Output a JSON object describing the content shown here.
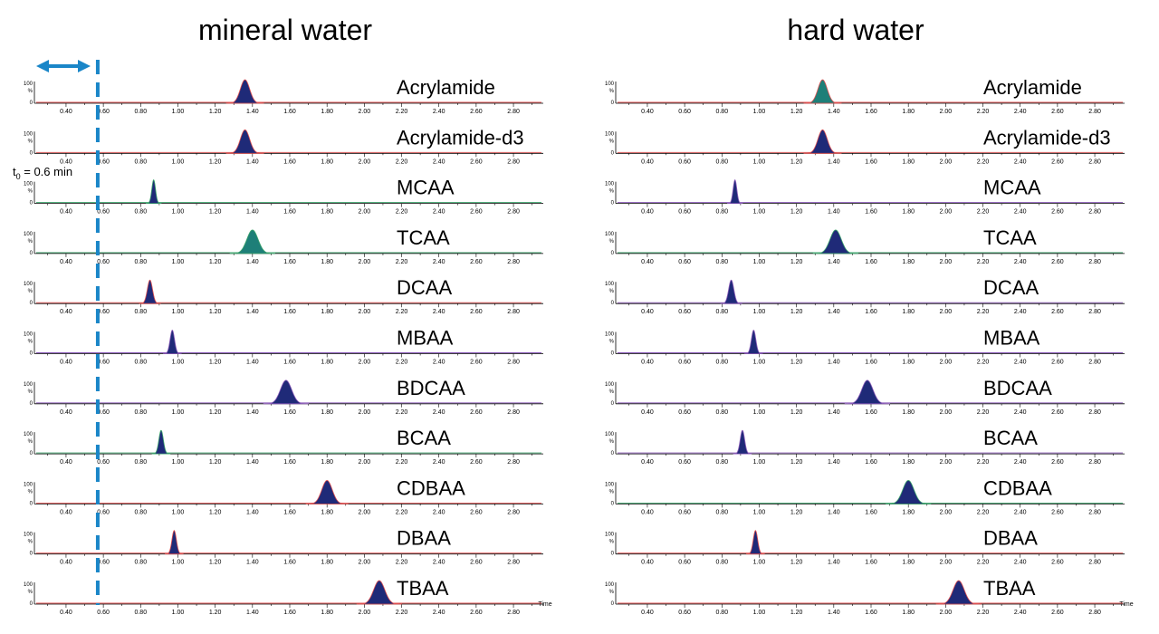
{
  "chart_data": {
    "type": "line",
    "x_tick_labels": [
      "0.40",
      "0.60",
      "0.80",
      "1.00",
      "1.20",
      "1.40",
      "1.60",
      "1.80",
      "2.00",
      "2.20",
      "2.40",
      "2.60",
      "2.80"
    ],
    "xlim": [
      0.24,
      2.96
    ],
    "y_tick_labels": [
      "100",
      "%",
      "0"
    ],
    "x_unit_label": "Time",
    "annotation": {
      "text": "t",
      "subscript": "0",
      "suffix": " = 0.6 min",
      "t0": 0.57
    },
    "colors": {
      "peak_fill": "#1f2a78",
      "peak_fill_alt": "#1e7f78",
      "trace_red": "#e05050",
      "trace_green": "#3aa36a",
      "trace_purple": "#8a5ab8",
      "marker_blue": "#1a86c8"
    },
    "panels": [
      {
        "title": "mineral water",
        "traces": [
          {
            "name": "Acrylamide",
            "rt": 1.36,
            "width": 0.025,
            "fill": "#1f2a78",
            "base": "#e05050"
          },
          {
            "name": "Acrylamide-d3",
            "rt": 1.36,
            "width": 0.025,
            "fill": "#1f2a78",
            "base": "#e05050"
          },
          {
            "name": "MCAA",
            "rt": 0.87,
            "width": 0.01,
            "fill": "#1f2a78",
            "base": "#3aa36a"
          },
          {
            "name": "TCAA",
            "rt": 1.4,
            "width": 0.03,
            "fill": "#1e7f78",
            "base": "#3aa36a"
          },
          {
            "name": "DCAA",
            "rt": 0.85,
            "width": 0.014,
            "fill": "#1f2a78",
            "base": "#e05050"
          },
          {
            "name": "MBAA",
            "rt": 0.97,
            "width": 0.012,
            "fill": "#1f2a78",
            "base": "#8a5ab8"
          },
          {
            "name": "BDCAA",
            "rt": 1.58,
            "width": 0.03,
            "fill": "#1f2a78",
            "base": "#8a5ab8"
          },
          {
            "name": "BCAA",
            "rt": 0.91,
            "width": 0.012,
            "fill": "#1f2a78",
            "base": "#3aa36a"
          },
          {
            "name": "CDBAA",
            "rt": 1.8,
            "width": 0.028,
            "fill": "#1f2a78",
            "base": "#e05050"
          },
          {
            "name": "DBAA",
            "rt": 0.98,
            "width": 0.012,
            "fill": "#1f2a78",
            "base": "#e05050"
          },
          {
            "name": "TBAA",
            "rt": 2.08,
            "width": 0.03,
            "fill": "#1f2a78",
            "base": "#e05050"
          }
        ]
      },
      {
        "title": "hard water",
        "traces": [
          {
            "name": "Acrylamide",
            "rt": 1.34,
            "width": 0.025,
            "fill": "#1e7f78",
            "base": "#e05050"
          },
          {
            "name": "Acrylamide-d3",
            "rt": 1.34,
            "width": 0.025,
            "fill": "#1f2a78",
            "base": "#e05050"
          },
          {
            "name": "MCAA",
            "rt": 0.87,
            "width": 0.01,
            "fill": "#1f2a78",
            "base": "#8a5ab8"
          },
          {
            "name": "TCAA",
            "rt": 1.41,
            "width": 0.03,
            "fill": "#1f2a78",
            "base": "#3aa36a"
          },
          {
            "name": "DCAA",
            "rt": 0.85,
            "width": 0.014,
            "fill": "#1f2a78",
            "base": "#8a5ab8"
          },
          {
            "name": "MBAA",
            "rt": 0.97,
            "width": 0.012,
            "fill": "#1f2a78",
            "base": "#8a5ab8"
          },
          {
            "name": "BDCAA",
            "rt": 1.58,
            "width": 0.03,
            "fill": "#1f2a78",
            "base": "#8a5ab8"
          },
          {
            "name": "BCAA",
            "rt": 0.91,
            "width": 0.012,
            "fill": "#1f2a78",
            "base": "#8a5ab8"
          },
          {
            "name": "CDBAA",
            "rt": 1.8,
            "width": 0.03,
            "fill": "#1f2a78",
            "base": "#3aa36a"
          },
          {
            "name": "DBAA",
            "rt": 0.98,
            "width": 0.012,
            "fill": "#1f2a78",
            "base": "#e05050"
          },
          {
            "name": "TBAA",
            "rt": 2.07,
            "width": 0.03,
            "fill": "#1f2a78",
            "base": "#e05050"
          }
        ]
      }
    ]
  }
}
